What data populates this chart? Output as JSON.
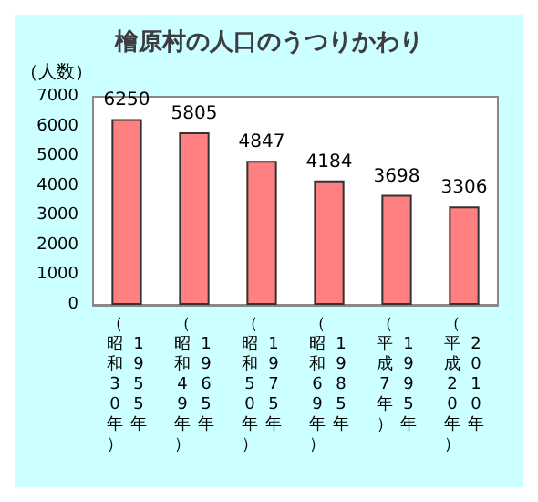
{
  "chart_data": {
    "type": "bar",
    "title": "檜原村の人口のうつりかわり",
    "ylabel": "（人数）",
    "categories": [
      "（昭和30年）\n1955年",
      "（昭和49年）\n1965年",
      "（昭和50年）\n1975年",
      "（昭和69年）\n1985年",
      "（平成7年）\n1995年",
      "（平成20年）\n2010年"
    ],
    "values": [
      6250,
      5805,
      4847,
      4184,
      3698,
      3306
    ],
    "color": "#ff8080",
    "ylim": [
      0,
      7000
    ],
    "yticks": [
      0,
      1000,
      2000,
      3000,
      4000,
      5000,
      6000,
      7000
    ],
    "data_labels": true
  }
}
